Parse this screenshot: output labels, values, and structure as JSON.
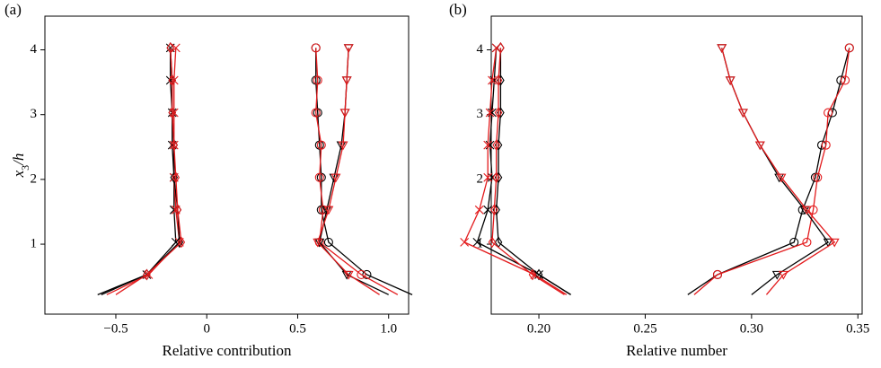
{
  "chart_data": [
    {
      "type": "line",
      "panel_label": "(a)",
      "xlabel": "Relative contribution",
      "ylabel": [
        "x",
        "3",
        "/h"
      ],
      "xlim": [
        -0.89,
        1.11
      ],
      "ylim": [
        -0.08,
        4.52
      ],
      "xticks": [
        {
          "value": -0.5,
          "label": "−0.5"
        },
        0,
        0.5,
        {
          "value": 1,
          "label": "1.0"
        }
      ],
      "yticks": [
        1,
        2,
        3,
        4
      ],
      "y": [
        0.22,
        0.53,
        1.03,
        1.53,
        2.03,
        2.53,
        3.03,
        3.53,
        4.03
      ],
      "series": [
        {
          "color": "#000000",
          "marker": "x",
          "values": [
            -0.6,
            -0.33,
            -0.17,
            -0.18,
            -0.18,
            -0.19,
            -0.19,
            -0.2,
            -0.2
          ]
        },
        {
          "color": "#e31a1c",
          "marker": "x",
          "values": [
            -0.55,
            -0.32,
            -0.15,
            -0.17,
            -0.18,
            -0.18,
            -0.18,
            -0.18,
            -0.17
          ]
        },
        {
          "color": "#000000",
          "marker": "diamond",
          "values": [
            -0.58,
            -0.33,
            -0.15,
            -0.16,
            -0.18,
            -0.18,
            -0.19,
            -0.19,
            -0.2
          ]
        },
        {
          "color": "#e31a1c",
          "marker": "diamond",
          "values": [
            -0.5,
            -0.33,
            -0.14,
            -0.16,
            -0.17,
            -0.18,
            -0.19,
            -0.19,
            -0.2
          ]
        },
        {
          "color": "#000000",
          "marker": "circle",
          "values": [
            1.13,
            0.88,
            0.67,
            0.63,
            0.63,
            0.62,
            0.61,
            0.6,
            0.6
          ]
        },
        {
          "color": "#e31a1c",
          "marker": "circle",
          "values": [
            1.05,
            0.85,
            0.62,
            0.64,
            0.62,
            0.63,
            0.6,
            0.61,
            0.6
          ]
        },
        {
          "color": "#000000",
          "marker": "triangle_down",
          "values": [
            1.0,
            0.77,
            0.62,
            0.66,
            0.7,
            0.74,
            0.76,
            0.77,
            0.78
          ]
        },
        {
          "color": "#e31a1c",
          "marker": "triangle_down",
          "values": [
            0.95,
            0.78,
            0.61,
            0.67,
            0.71,
            0.75,
            0.76,
            0.77,
            0.78
          ]
        }
      ]
    },
    {
      "type": "line",
      "panel_label": "(b)",
      "xlabel": "Relative number",
      "xlim": [
        0.1776,
        0.352
      ],
      "ylim": [
        -0.08,
        4.52
      ],
      "xticks": [
        {
          "value": 0.2,
          "label": "0.20"
        },
        0.25,
        {
          "value": 0.3,
          "label": "0.30"
        },
        0.35
      ],
      "yticks": [
        1,
        2,
        3,
        4
      ],
      "y": [
        0.22,
        0.53,
        1.03,
        1.53,
        2.03,
        2.53,
        3.03,
        3.53,
        4.03
      ],
      "series": [
        {
          "color": "#000000",
          "marker": "x",
          "values": [
            0.215,
            0.2,
            0.171,
            0.176,
            0.178,
            0.177,
            0.178,
            0.179,
            0.18
          ]
        },
        {
          "color": "#e31a1c",
          "marker": "x",
          "values": [
            0.213,
            0.198,
            0.165,
            0.172,
            0.176,
            0.176,
            0.177,
            0.178,
            0.18
          ]
        },
        {
          "color": "#000000",
          "marker": "diamond",
          "values": [
            0.215,
            0.2,
            0.181,
            0.18,
            0.181,
            0.181,
            0.182,
            0.182,
            0.182
          ]
        },
        {
          "color": "#e31a1c",
          "marker": "diamond",
          "values": [
            0.212,
            0.197,
            0.178,
            0.179,
            0.18,
            0.18,
            0.181,
            0.181,
            0.182
          ]
        },
        {
          "color": "#000000",
          "marker": "circle",
          "values": [
            0.27,
            0.284,
            0.32,
            0.324,
            0.33,
            0.333,
            0.338,
            0.342,
            0.346
          ]
        },
        {
          "color": "#e31a1c",
          "marker": "circle",
          "values": [
            0.273,
            0.284,
            0.326,
            0.329,
            0.331,
            0.335,
            0.336,
            0.344,
            0.346
          ]
        },
        {
          "color": "#000000",
          "marker": "triangle_down",
          "values": [
            0.3,
            0.312,
            0.336,
            0.325,
            0.313,
            0.304,
            0.296,
            0.29,
            0.286
          ]
        },
        {
          "color": "#e31a1c",
          "marker": "triangle_down",
          "values": [
            0.307,
            0.315,
            0.339,
            0.326,
            0.314,
            0.304,
            0.296,
            0.29,
            0.286
          ]
        }
      ]
    }
  ]
}
